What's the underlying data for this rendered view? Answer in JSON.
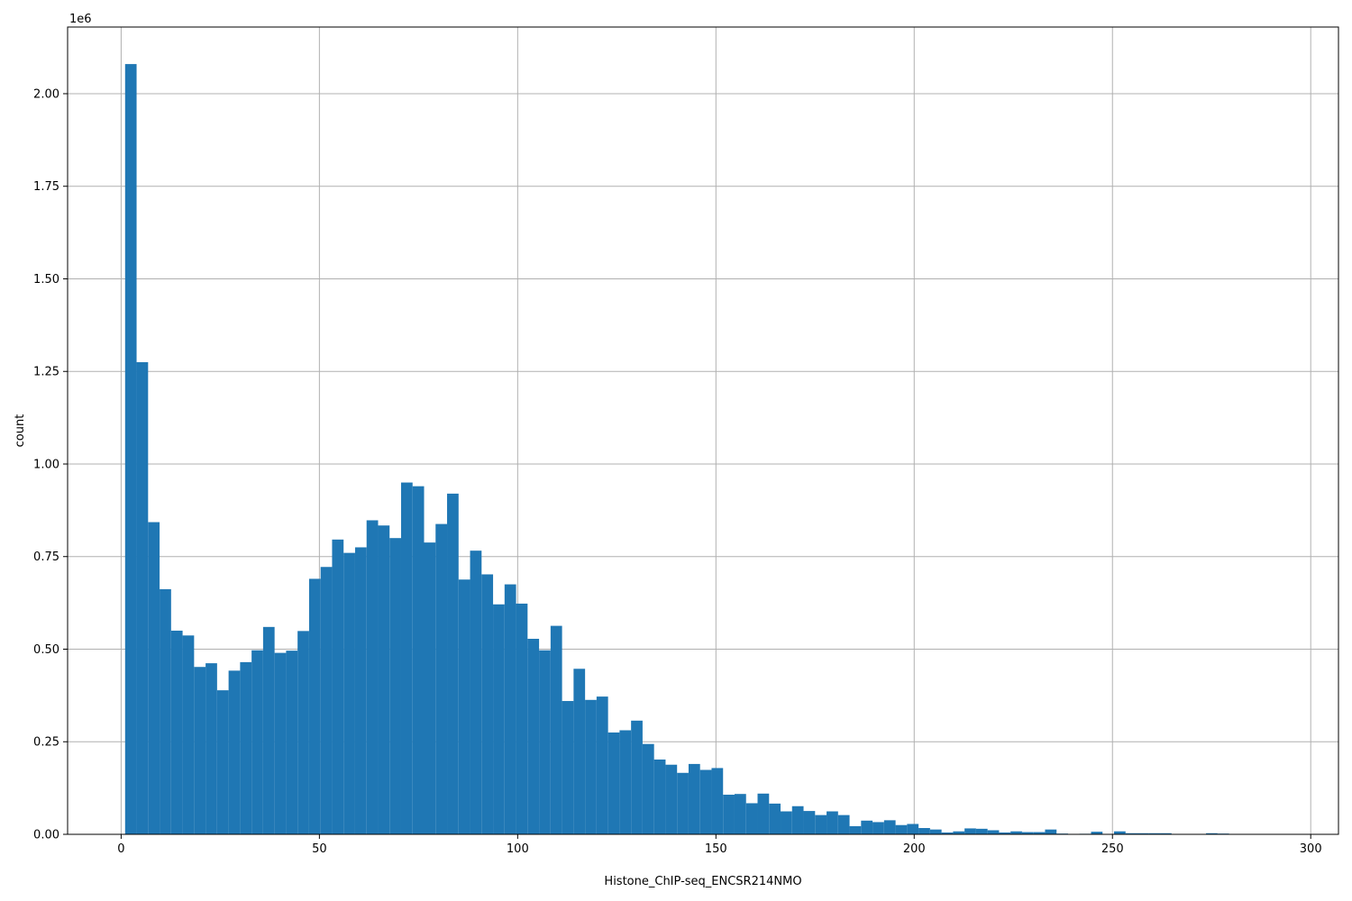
{
  "chart_data": {
    "type": "bar",
    "subtype": "histogram",
    "xlabel": "Histone_ChIP-seq_ENCSR214NMO",
    "ylabel": "count",
    "y_multiplier_label": "1e6",
    "xlim": [
      -13.5,
      307
    ],
    "ylim": [
      0,
      2180000
    ],
    "x_ticks": [
      0,
      50,
      100,
      150,
      200,
      250,
      300
    ],
    "x_tick_labels": [
      "0",
      "50",
      "100",
      "150",
      "200",
      "250",
      "300"
    ],
    "y_ticks": [
      0,
      250000,
      500000,
      750000,
      1000000,
      1250000,
      1500000,
      1750000,
      2000000
    ],
    "y_tick_labels": [
      "0.00",
      "0.25",
      "0.50",
      "0.75",
      "1.00",
      "1.25",
      "1.50",
      "1.75",
      "2.00"
    ],
    "grid": true,
    "bar_color": "#1f77b4",
    "bin_start": 1,
    "bin_width": 2.9,
    "values": [
      2080000,
      1275000,
      843000,
      662000,
      550000,
      537000,
      452000,
      462000,
      389000,
      442000,
      465000,
      497000,
      560000,
      490000,
      496000,
      549000,
      690000,
      722000,
      796000,
      760000,
      775000,
      848000,
      834000,
      800000,
      950000,
      940000,
      788000,
      838000,
      920000,
      688000,
      766000,
      702000,
      621000,
      675000,
      623000,
      528000,
      497000,
      563000,
      360000,
      447000,
      363000,
      372000,
      275000,
      281000,
      307000,
      244000,
      202000,
      188000,
      166000,
      190000,
      174000,
      179000,
      107000,
      109000,
      84000,
      110000,
      83000,
      62000,
      76000,
      63000,
      52000,
      62000,
      52000,
      22000,
      37000,
      33000,
      38000,
      25000,
      28000,
      17000,
      13000,
      5000,
      8000,
      16000,
      15000,
      11000,
      5000,
      8000,
      6000,
      6000,
      13000,
      2000,
      1000,
      1500,
      7000,
      1000,
      8000,
      3000,
      3000,
      3000,
      3000,
      1000,
      1000,
      500,
      3000,
      2000,
      1000,
      500,
      500,
      300
    ]
  }
}
